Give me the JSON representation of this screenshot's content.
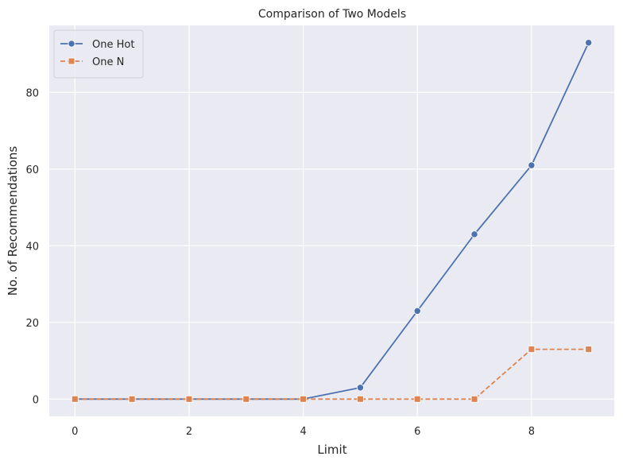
{
  "chart_data": {
    "type": "line",
    "title": "Comparison of Two Models",
    "xlabel": "Limit",
    "ylabel": "No. of Recommendations",
    "x": [
      0,
      1,
      2,
      3,
      4,
      5,
      6,
      7,
      8,
      9
    ],
    "xlim": [
      -0.45,
      9.45
    ],
    "ylim": [
      -4.5,
      97.5
    ],
    "xticks": [
      0,
      2,
      4,
      6,
      8
    ],
    "yticks": [
      0,
      20,
      40,
      60,
      80
    ],
    "grid": true,
    "legend_position": "top-left",
    "series": [
      {
        "name": "One Hot",
        "values": [
          0,
          0,
          0,
          0,
          0,
          3,
          23,
          43,
          61,
          93
        ],
        "color": "#4c72b0",
        "marker": "circle",
        "line_style": "solid"
      },
      {
        "name": "One N",
        "values": [
          0,
          0,
          0,
          0,
          0,
          0,
          0,
          0,
          13,
          13
        ],
        "color": "#dd8452",
        "marker": "square",
        "line_style": "dashed"
      }
    ],
    "colors": {
      "plot_background": "#eaeaf2",
      "grid": "#ffffff",
      "text": "#262626"
    }
  }
}
